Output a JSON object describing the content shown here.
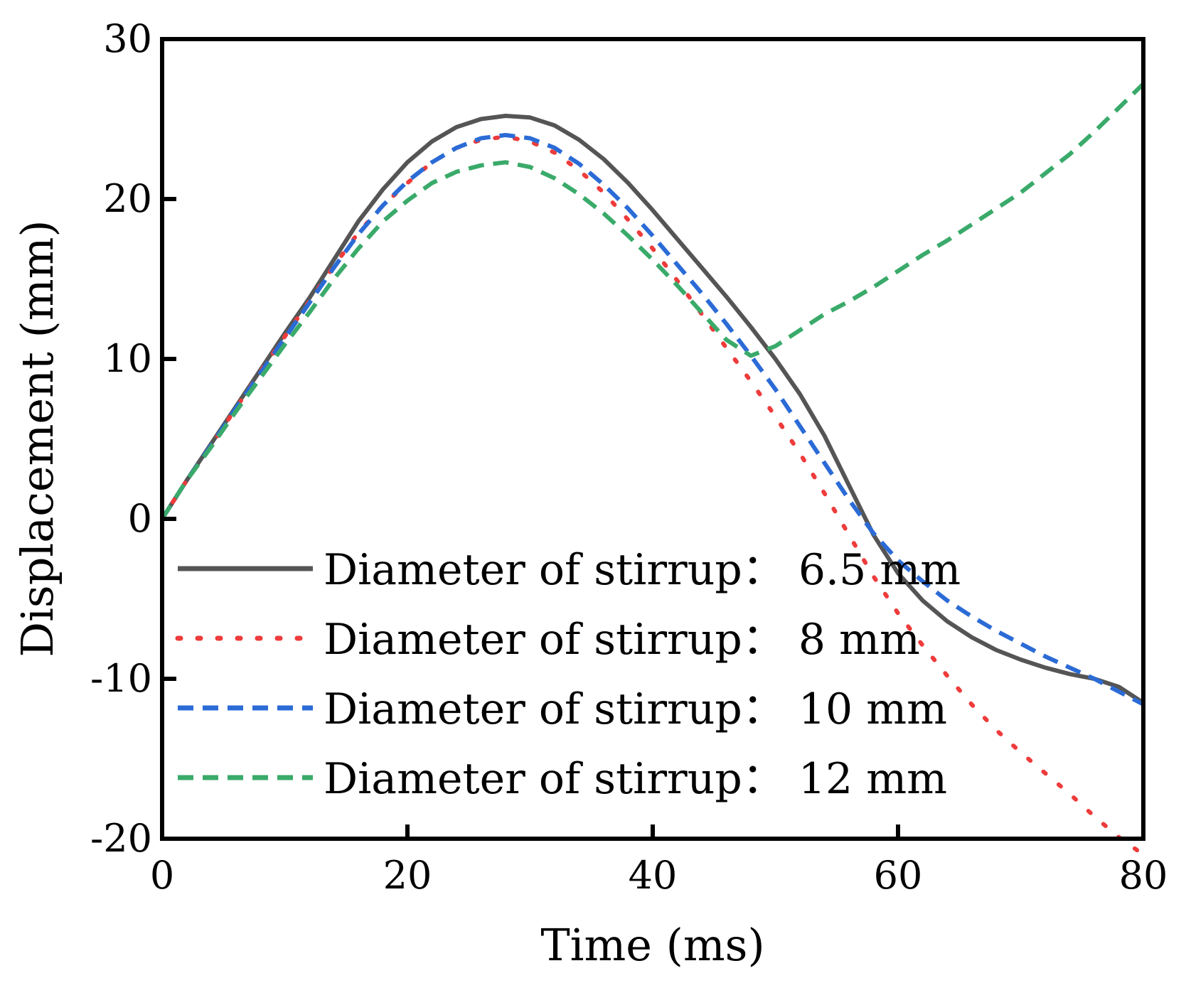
{
  "chart_data": {
    "type": "line",
    "title": "",
    "xlabel": "Time (ms)",
    "ylabel": "Displacement (mm)",
    "xlim": [
      0,
      80
    ],
    "ylim": [
      -20,
      30
    ],
    "xticks": [
      0,
      20,
      40,
      60,
      80
    ],
    "yticks": [
      -20,
      -10,
      0,
      10,
      20,
      30
    ],
    "xtick_labels": [
      "0",
      "20",
      "40",
      "60",
      "80"
    ],
    "ytick_labels": [
      "-20",
      "-10",
      "0",
      "10",
      "20",
      "30"
    ],
    "grid": false,
    "legend_position": "bottom-left",
    "series": [
      {
        "name": "Diameter of stirrup： 6.5 mm",
        "color": "#555555",
        "style": "solid",
        "points": [
          [
            0,
            0
          ],
          [
            2,
            2.4
          ],
          [
            4,
            4.7
          ],
          [
            6,
            7.0
          ],
          [
            8,
            9.3
          ],
          [
            10,
            11.6
          ],
          [
            12,
            13.8
          ],
          [
            14,
            16.2
          ],
          [
            16,
            18.6
          ],
          [
            18,
            20.6
          ],
          [
            20,
            22.3
          ],
          [
            22,
            23.6
          ],
          [
            24,
            24.5
          ],
          [
            26,
            25.0
          ],
          [
            28,
            25.2
          ],
          [
            30,
            25.1
          ],
          [
            32,
            24.6
          ],
          [
            34,
            23.7
          ],
          [
            36,
            22.5
          ],
          [
            38,
            21.0
          ],
          [
            40,
            19.3
          ],
          [
            42,
            17.5
          ],
          [
            44,
            15.7
          ],
          [
            46,
            13.9
          ],
          [
            48,
            12.0
          ],
          [
            50,
            10.0
          ],
          [
            52,
            7.8
          ],
          [
            54,
            5.2
          ],
          [
            56,
            2.1
          ],
          [
            58,
            -1.0
          ],
          [
            60,
            -3.4
          ],
          [
            62,
            -5.1
          ],
          [
            64,
            -6.4
          ],
          [
            66,
            -7.4
          ],
          [
            68,
            -8.2
          ],
          [
            70,
            -8.8
          ],
          [
            72,
            -9.3
          ],
          [
            74,
            -9.7
          ],
          [
            76,
            -10.0
          ],
          [
            78,
            -10.5
          ],
          [
            80,
            -11.5
          ]
        ]
      },
      {
        "name": "Diameter of stirrup： 8 mm",
        "color": "#ee3b3b",
        "style": "dotted",
        "points": [
          [
            0,
            0
          ],
          [
            2,
            2.4
          ],
          [
            4,
            4.6
          ],
          [
            6,
            6.9
          ],
          [
            8,
            9.2
          ],
          [
            10,
            11.4
          ],
          [
            12,
            13.6
          ],
          [
            14,
            15.8
          ],
          [
            16,
            17.9
          ],
          [
            18,
            19.6
          ],
          [
            20,
            21.0
          ],
          [
            22,
            22.3
          ],
          [
            24,
            23.2
          ],
          [
            26,
            23.7
          ],
          [
            28,
            23.9
          ],
          [
            30,
            23.6
          ],
          [
            32,
            22.9
          ],
          [
            34,
            21.8
          ],
          [
            36,
            20.4
          ],
          [
            38,
            18.7
          ],
          [
            40,
            16.9
          ],
          [
            42,
            14.9
          ],
          [
            44,
            12.8
          ],
          [
            46,
            10.7
          ],
          [
            48,
            8.6
          ],
          [
            50,
            6.4
          ],
          [
            52,
            4.1
          ],
          [
            54,
            1.6
          ],
          [
            56,
            -1.0
          ],
          [
            58,
            -3.6
          ],
          [
            60,
            -5.9
          ],
          [
            62,
            -7.9
          ],
          [
            64,
            -9.8
          ],
          [
            66,
            -11.6
          ],
          [
            68,
            -13.2
          ],
          [
            70,
            -14.6
          ],
          [
            72,
            -15.9
          ],
          [
            74,
            -17.2
          ],
          [
            76,
            -18.6
          ],
          [
            78,
            -19.9
          ],
          [
            80,
            -21.0
          ]
        ]
      },
      {
        "name": "Diameter of stirrup： 10 mm",
        "color": "#2b6bd6",
        "style": "dashed",
        "points": [
          [
            0,
            0
          ],
          [
            2,
            2.4
          ],
          [
            4,
            4.6
          ],
          [
            6,
            6.9
          ],
          [
            8,
            9.1
          ],
          [
            10,
            11.3
          ],
          [
            12,
            13.5
          ],
          [
            14,
            15.7
          ],
          [
            16,
            17.8
          ],
          [
            18,
            19.6
          ],
          [
            20,
            21.1
          ],
          [
            22,
            22.3
          ],
          [
            24,
            23.2
          ],
          [
            26,
            23.8
          ],
          [
            28,
            24.0
          ],
          [
            30,
            23.8
          ],
          [
            32,
            23.2
          ],
          [
            34,
            22.2
          ],
          [
            36,
            20.9
          ],
          [
            38,
            19.4
          ],
          [
            40,
            17.7
          ],
          [
            42,
            15.9
          ],
          [
            44,
            14.1
          ],
          [
            46,
            12.2
          ],
          [
            48,
            10.2
          ],
          [
            50,
            8.1
          ],
          [
            52,
            5.8
          ],
          [
            54,
            3.5
          ],
          [
            56,
            1.2
          ],
          [
            58,
            -0.9
          ],
          [
            60,
            -2.6
          ],
          [
            62,
            -3.9
          ],
          [
            64,
            -5.1
          ],
          [
            66,
            -6.1
          ],
          [
            68,
            -7.0
          ],
          [
            70,
            -7.8
          ],
          [
            72,
            -8.6
          ],
          [
            74,
            -9.3
          ],
          [
            76,
            -10.0
          ],
          [
            78,
            -10.8
          ],
          [
            80,
            -11.6
          ]
        ]
      },
      {
        "name": "Diameter of stirrup： 12 mm",
        "color": "#3aaa6a",
        "style": "dashed",
        "points": [
          [
            0,
            0
          ],
          [
            2,
            2.4
          ],
          [
            4,
            4.5
          ],
          [
            6,
            6.7
          ],
          [
            8,
            8.8
          ],
          [
            10,
            10.9
          ],
          [
            12,
            12.9
          ],
          [
            14,
            15.0
          ],
          [
            16,
            16.9
          ],
          [
            18,
            18.6
          ],
          [
            20,
            19.9
          ],
          [
            22,
            21.0
          ],
          [
            24,
            21.7
          ],
          [
            26,
            22.1
          ],
          [
            28,
            22.3
          ],
          [
            30,
            22.0
          ],
          [
            32,
            21.3
          ],
          [
            34,
            20.3
          ],
          [
            36,
            19.1
          ],
          [
            38,
            17.7
          ],
          [
            40,
            16.2
          ],
          [
            42,
            14.6
          ],
          [
            44,
            12.9
          ],
          [
            46,
            11.2
          ],
          [
            48,
            10.2
          ],
          [
            50,
            10.8
          ],
          [
            52,
            11.8
          ],
          [
            54,
            12.8
          ],
          [
            56,
            13.6
          ],
          [
            58,
            14.5
          ],
          [
            60,
            15.5
          ],
          [
            62,
            16.5
          ],
          [
            64,
            17.4
          ],
          [
            66,
            18.4
          ],
          [
            68,
            19.4
          ],
          [
            70,
            20.4
          ],
          [
            72,
            21.6
          ],
          [
            74,
            22.8
          ],
          [
            76,
            24.2
          ],
          [
            78,
            25.7
          ],
          [
            80,
            27.2
          ]
        ]
      }
    ]
  }
}
